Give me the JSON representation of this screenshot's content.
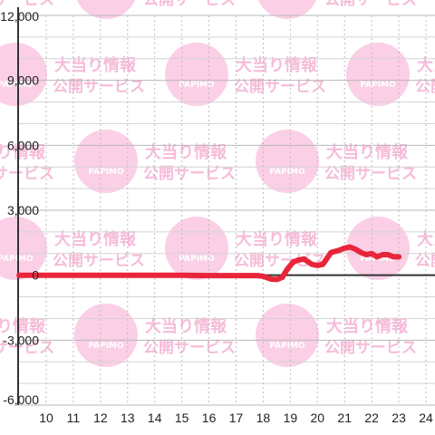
{
  "watermark": {
    "line1": "大当り情報",
    "line2": "公開サービス",
    "brand": "PAPIMO",
    "color": "#fbcfe6"
  },
  "chart_data": {
    "type": "line",
    "title": "",
    "xlabel": "",
    "ylabel": "",
    "xlim": [
      9.1,
      24.4
    ],
    "ylim": [
      -6000,
      12000
    ],
    "x_ticks": [
      "10",
      "11",
      "12",
      "13",
      "14",
      "15",
      "16",
      "17",
      "18",
      "19",
      "20",
      "21",
      "22",
      "23",
      "24"
    ],
    "y_ticks": [
      "12,000",
      "9,000",
      "6,000",
      "3,000",
      "0",
      "-3,000",
      "-6,000"
    ],
    "y_tick_values": [
      12000,
      9000,
      6000,
      3000,
      0,
      -3000,
      -6000
    ],
    "grid": true,
    "line_color": "#e8253a",
    "series": [
      {
        "x": [
          9.0,
          15.0,
          16.0,
          17.0,
          17.8,
          18.0,
          18.3,
          18.5,
          18.7,
          18.9,
          19.1,
          19.3,
          19.5,
          19.8,
          20.0,
          20.2,
          20.5,
          20.8,
          21.0,
          21.2,
          21.4,
          21.6,
          21.8,
          22.0,
          22.2,
          22.4,
          22.6,
          22.8,
          23.0
        ],
        "y": [
          0,
          0,
          -20,
          -20,
          -20,
          -50,
          -180,
          -200,
          -100,
          300,
          600,
          700,
          750,
          500,
          450,
          500,
          1050,
          1150,
          1250,
          1300,
          1200,
          1050,
          950,
          1000,
          850,
          950,
          950,
          850,
          850
        ]
      }
    ]
  }
}
